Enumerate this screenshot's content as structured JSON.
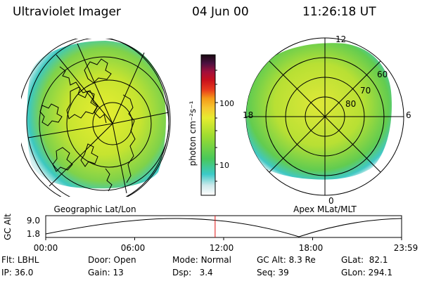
{
  "header": {
    "instrument": "Ultraviolet Imager",
    "date": "04 Jun 00",
    "time": "11:26:18 UT"
  },
  "colorbar": {
    "label": "photon cm⁻²s⁻¹",
    "ticks": [
      "100",
      "10"
    ]
  },
  "geo_map": {
    "caption": "Geographic Lat/Lon"
  },
  "apex_map": {
    "caption": "Apex MLat/MLT",
    "mlt_labels": {
      "top": "12",
      "bottom": "0",
      "left": "18",
      "right": "6"
    },
    "lat_labels": [
      "60",
      "70",
      "80"
    ]
  },
  "altitude_plot": {
    "ylabel": "GC Alt",
    "ymax_label": "9.0",
    "ymin_label": "1.8",
    "time_ticks": [
      "00:00",
      "06:00",
      "12:00",
      "18:00",
      "23:59"
    ],
    "current_time_fraction": 0.476
  },
  "params": {
    "flt": {
      "label": "Flt:",
      "value": "LBHL"
    },
    "ip": {
      "label": "IP:",
      "value": "36.0"
    },
    "door": {
      "label": "Door:",
      "value": "Open"
    },
    "gain": {
      "label": "Gain:",
      "value": "13"
    },
    "mode": {
      "label": "Mode:",
      "value": "Normal"
    },
    "dsp": {
      "label": "Dsp:",
      "value": "3.4"
    },
    "gcalt": {
      "label": "GC Alt:",
      "value": "8.3 Re"
    },
    "seq": {
      "label": "Seq:",
      "value": "39"
    },
    "glat": {
      "label": "GLat:",
      "value": "82.1"
    },
    "glon": {
      "label": "GLon:",
      "value": "294.1"
    }
  }
}
